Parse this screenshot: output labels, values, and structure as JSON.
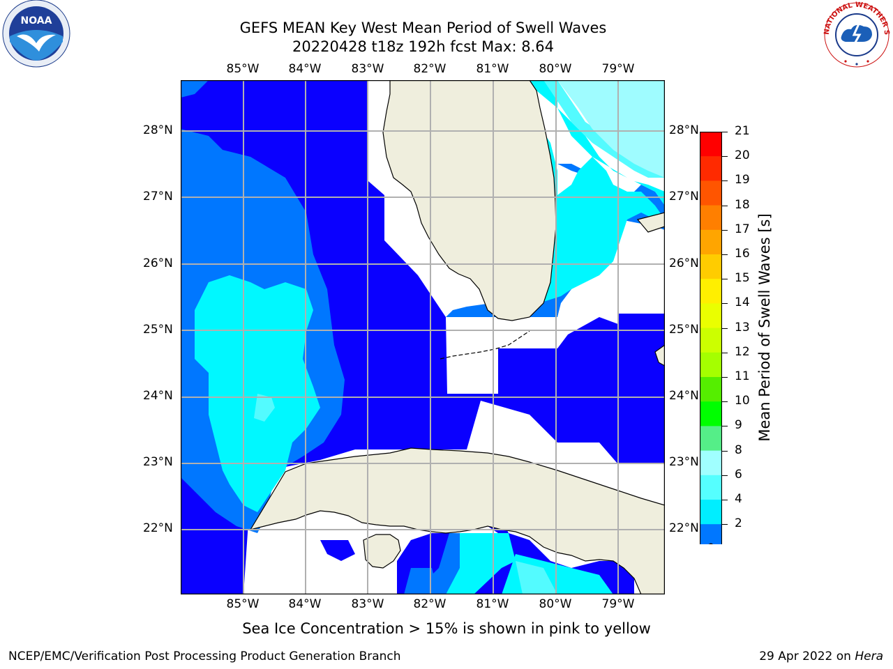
{
  "title": {
    "line1": "GEFS MEAN Key West Mean Period of Swell Waves",
    "line2": "20220428 t18z 192h fcst   Max: 8.64"
  },
  "logos": {
    "noaa_text": "NOAA",
    "nws_text": "NATIONAL WEATHER SERVICE"
  },
  "map": {
    "lon_labels": [
      "85°W",
      "84°W",
      "83°W",
      "82°W",
      "81°W",
      "80°W",
      "79°W"
    ],
    "lat_labels": [
      "28°N",
      "27°N",
      "26°N",
      "25°N",
      "24°N",
      "23°N",
      "22°N"
    ],
    "colors": {
      "land": "#efeedd",
      "band_2_4": "#0a00ff",
      "band_4_6": "#0077ff",
      "band_6_8": "#00f8ff",
      "band_8_10": "#53fbff",
      "band_10_12": "#9ffcff",
      "grid": "#b0b0b0",
      "nodata": "#ffffff"
    }
  },
  "colorbar": {
    "label": "Mean Period of Swell Waves [s]",
    "ticks": [
      "21",
      "20",
      "19",
      "18",
      "17",
      "16",
      "15",
      "14",
      "13",
      "12",
      "11",
      "10",
      "9",
      "8",
      "6",
      "4",
      "2"
    ],
    "bands": [
      "#ff0000",
      "#ff2a00",
      "#ff5500",
      "#ff7f00",
      "#ffa500",
      "#ffcc00",
      "#ffef00",
      "#eaff00",
      "#ccff00",
      "#a5ff00",
      "#55ee00",
      "#00ff00",
      "#55ee88",
      "#a0ffff",
      "#55ffff",
      "#00eeff",
      "#0077ff"
    ],
    "extend_color": "#0a00ff"
  },
  "caption": "Sea Ice Concentration > 15% is shown in pink to yellow",
  "footer": {
    "left": "NCEP/EMC/Verification Post Processing Product Generation Branch",
    "right_date": "29 Apr 2022 on ",
    "right_host": "Hera"
  }
}
